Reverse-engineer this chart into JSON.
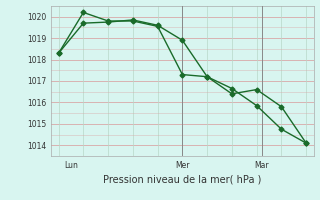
{
  "line1_x": [
    0,
    1,
    2,
    3,
    4,
    5,
    6,
    7,
    8,
    9,
    10
  ],
  "line1_y": [
    1018.3,
    1019.7,
    1019.75,
    1019.85,
    1019.6,
    1018.9,
    1017.2,
    1016.4,
    1016.6,
    1015.8,
    1014.1
  ],
  "line2_x": [
    0,
    1,
    2,
    3,
    4,
    5,
    6,
    7,
    8,
    9,
    10
  ],
  "line2_y": [
    1018.3,
    1020.2,
    1019.8,
    1019.8,
    1019.55,
    1017.3,
    1017.2,
    1016.65,
    1015.85,
    1014.75,
    1014.1
  ],
  "line_color": "#1a6b2a",
  "bg_color": "#d8f5f0",
  "grid_h_color": "#d8a8a8",
  "grid_v_color": "#b8d8c8",
  "ylabel_ticks": [
    1014,
    1015,
    1016,
    1017,
    1018,
    1019,
    1020
  ],
  "ylim": [
    1013.5,
    1020.5
  ],
  "xlim": [
    -0.3,
    10.3
  ],
  "xlabel": "Pression niveau de la mer( hPa )",
  "xtick_positions": [
    0.5,
    5.0,
    8.2
  ],
  "xtick_labels": [
    "Lun",
    "Mer",
    "Mar"
  ],
  "vline_positions": [
    5.0,
    8.2
  ],
  "vline_color": "#888888",
  "marker": "D",
  "markersize": 2.5,
  "linewidth": 1.0,
  "tick_fontsize": 5.5,
  "xlabel_fontsize": 7.0
}
